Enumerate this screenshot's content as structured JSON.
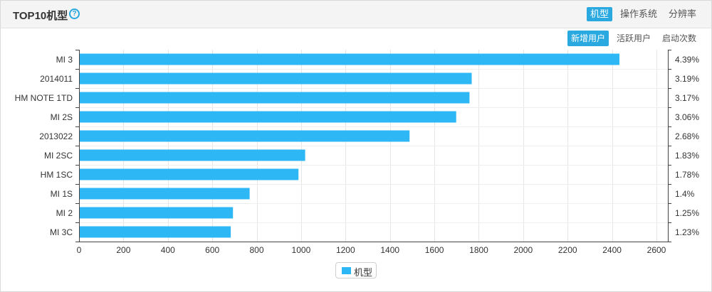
{
  "header": {
    "title": "TOP10机型",
    "help_glyph": "?",
    "dimension_tabs": [
      {
        "label": "机型",
        "active": true
      },
      {
        "label": "操作系统",
        "active": false
      },
      {
        "label": "分辨率",
        "active": false
      }
    ],
    "metric_tabs": [
      {
        "label": "新增用户",
        "active": true
      },
      {
        "label": "活跃用户",
        "active": false
      },
      {
        "label": "启动次数",
        "active": false
      }
    ]
  },
  "chart_data": {
    "type": "bar",
    "orientation": "horizontal",
    "categories": [
      "MI 3",
      "2014011",
      "HM NOTE 1TD",
      "MI 2S",
      "2013022",
      "MI 2SC",
      "HM 1SC",
      "MI 1S",
      "MI 2",
      "MI 3C"
    ],
    "series": [
      {
        "name": "机型",
        "values": [
          2430,
          1765,
          1755,
          1695,
          1485,
          1015,
          985,
          765,
          690,
          680
        ],
        "percent_labels": [
          "4.39%",
          "3.19%",
          "3.17%",
          "3.06%",
          "2.68%",
          "1.83%",
          "1.78%",
          "1.4%",
          "1.25%",
          "1.23%"
        ]
      }
    ],
    "xlim": [
      0,
      2600
    ],
    "xticks": [
      0,
      200,
      400,
      600,
      800,
      1000,
      1200,
      1400,
      1600,
      1800,
      2000,
      2200,
      2400,
      2600
    ],
    "grid": true,
    "legend_position": "bottom-center",
    "bar_color": "#2db7f5"
  }
}
